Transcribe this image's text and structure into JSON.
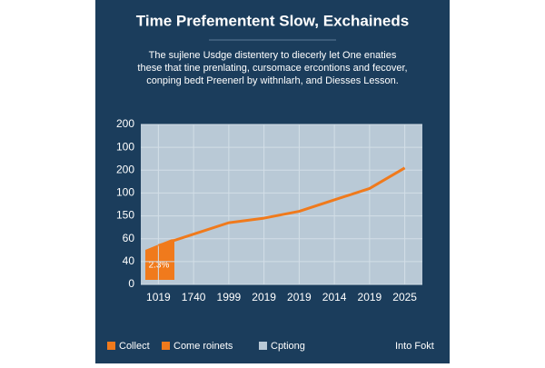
{
  "chart_data": {
    "type": "line",
    "title": "Time Prefementent Slow, Exchaineds",
    "subtitle": [
      "The sujlene Usdge distentery to diecerly let One enaties",
      "these that tine prenlating, cursomace ercontions and fecover,",
      "conping bedt Preenerl by  withnlarh, and Diesses Lesson."
    ],
    "categories": [
      "1019",
      "1740",
      "1999",
      "2019",
      "2019",
      "2014",
      "2019",
      "2025"
    ],
    "series": [
      {
        "color": "#f07a1c",
        "values": [
          1.7,
          2.2,
          2.7,
          2.9,
          3.2,
          3.7,
          4.2,
          5.1
        ]
      }
    ],
    "ylim": [
      0,
      7
    ],
    "yticks": [
      0,
      {
        "value": 1,
        "label": "40"
      },
      {
        "value": 2,
        "label": "60"
      },
      {
        "value": 3,
        "label": "150"
      },
      {
        "value": 4,
        "label": "100"
      },
      {
        "value": 5,
        "label": "200"
      },
      {
        "value": 6,
        "label": "100"
      },
      {
        "value": 7,
        "label": "200"
      }
    ],
    "grid": true,
    "annotation": "2.3%",
    "legend_items": [
      {
        "label": "Collect",
        "color": "#f07a1c"
      },
      {
        "label": "Come roinets",
        "color": "#f07a1c"
      },
      {
        "label": "Cptiong",
        "color": "#b9c9d6"
      },
      {
        "label": "Into Fokt"
      }
    ]
  }
}
